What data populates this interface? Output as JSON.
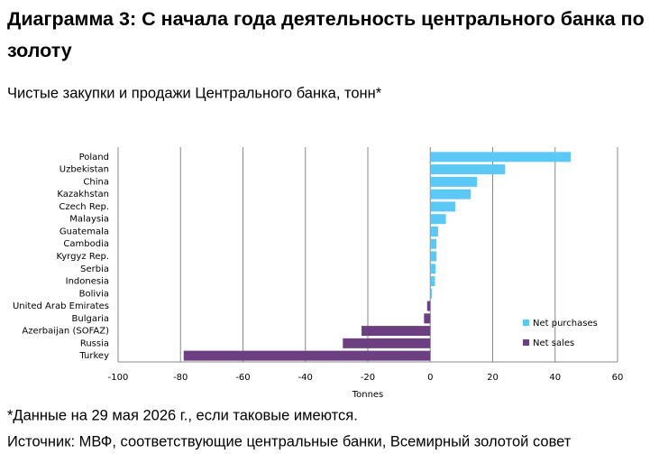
{
  "chart_data": {
    "type": "barh",
    "title": "Диаграмма 3: С начала года деятельность центрального банка по золоту",
    "subtitle": "Чистые закупки и продажи Центрального банка, тонн*",
    "xlabel": "Tonnes",
    "notes": [
      "*Данные на 29 мая 2026 г., если таковые имеются.",
      "Источник: МВФ, соответствующие центральные банки, Всемирный золотой совет"
    ],
    "categories": [
      "Poland",
      "Uzbekistan",
      "China",
      "Kazakhstan",
      "Czech Rep.",
      "Malaysia",
      "Guatemala",
      "Cambodia",
      "Kyrgyz Rep.",
      "Serbia",
      "Indonesia",
      "Bolivia",
      "United Arab Emirates",
      "Bulgaria",
      "Azerbaijan (SOFAZ)",
      "Russia",
      "Turkey"
    ],
    "series": [
      {
        "name": "Net purchases",
        "color": "#5bc8f5",
        "values": [
          45,
          24,
          15,
          13,
          8,
          5,
          2.5,
          2,
          2,
          1.7,
          1.5,
          0.5,
          null,
          null,
          null,
          null,
          null
        ]
      },
      {
        "name": "Net sales",
        "color": "#6b3f80",
        "values": [
          null,
          null,
          null,
          null,
          null,
          null,
          null,
          null,
          null,
          null,
          null,
          null,
          -1,
          -2,
          -22,
          -28,
          -79
        ]
      }
    ],
    "xlim": [
      -100,
      60
    ],
    "xticks": [
      -100,
      -80,
      -60,
      -40,
      -20,
      0,
      20,
      40,
      60
    ],
    "grid": true,
    "legend": "lower-right"
  }
}
